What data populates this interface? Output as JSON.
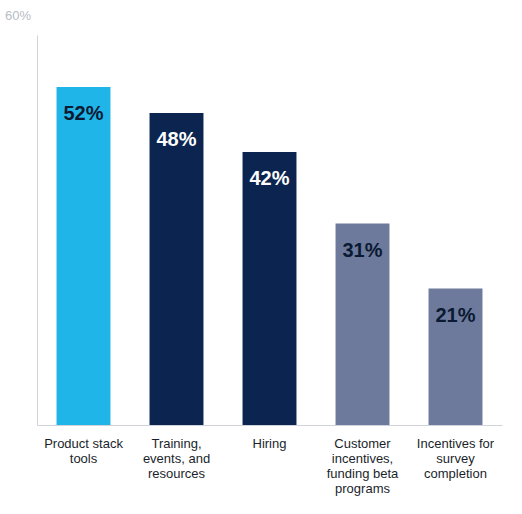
{
  "chart_data": {
    "type": "bar",
    "categories": [
      "Product stack tools",
      "Training, events, and resources",
      "Hiring",
      "Customer incentives, funding beta programs",
      "Incentives for survey completion"
    ],
    "values": [
      52,
      48,
      42,
      31,
      21
    ],
    "value_labels": [
      "52%",
      "48%",
      "42%",
      "31%",
      "21%"
    ],
    "colors": [
      "#1fb5e8",
      "#0b2550",
      "#0b2550",
      "#6e7a9c",
      "#6e7a9c"
    ],
    "ylim": [
      0,
      60
    ],
    "yticks": [
      {
        "value": 60,
        "label": "60%"
      }
    ],
    "data_labels": true
  }
}
